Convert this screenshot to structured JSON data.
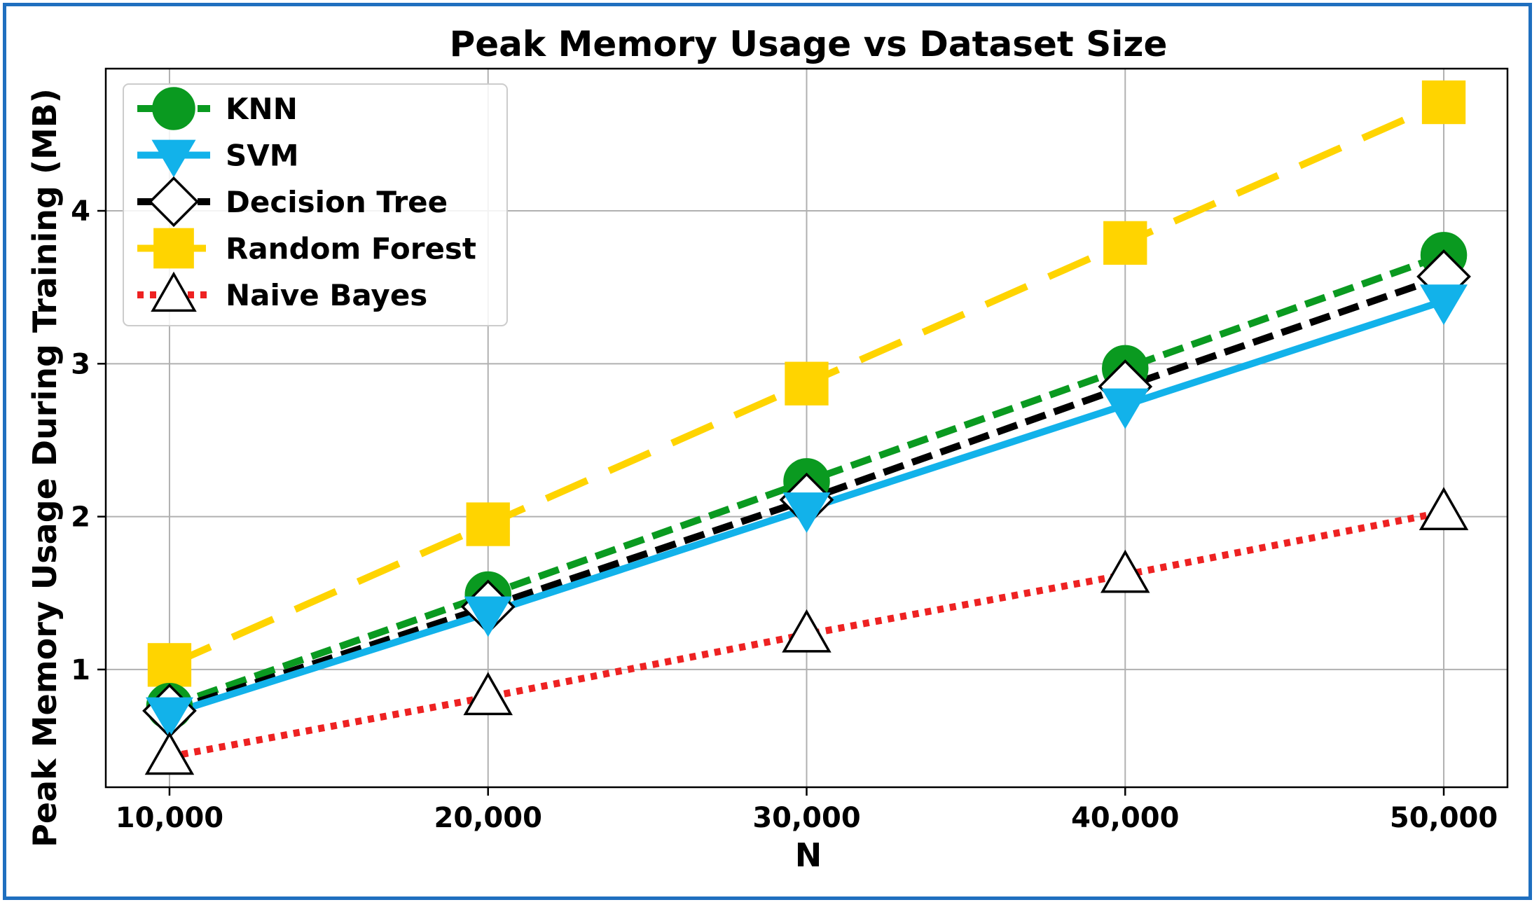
{
  "chart_data": {
    "type": "line",
    "title": "Peak Memory Usage vs Dataset Size",
    "xlabel": "N",
    "ylabel": "Peak Memory Usage During Training (MB)",
    "x": [
      10000,
      20000,
      30000,
      40000,
      50000
    ],
    "x_tick_labels": [
      "10,000",
      "20,000",
      "30,000",
      "40,000",
      "50,000"
    ],
    "y_ticks": [
      1,
      2,
      3,
      4
    ],
    "y_tick_labels": [
      "1",
      "2",
      "3",
      "4"
    ],
    "xlim": [
      8000,
      52000
    ],
    "ylim": [
      0.23,
      4.93
    ],
    "grid": true,
    "legend_position": "upper-left",
    "series": [
      {
        "name": "KNN",
        "values": [
          0.76,
          1.49,
          2.23,
          2.97,
          3.71
        ],
        "color": "#0a9a20",
        "line_style": "dashed",
        "marker": "circle"
      },
      {
        "name": "SVM",
        "values": [
          0.71,
          1.37,
          2.05,
          2.73,
          3.41
        ],
        "color": "#12b2ea",
        "line_style": "solid",
        "marker": "triangle-down"
      },
      {
        "name": "Decision Tree",
        "values": [
          0.73,
          1.41,
          2.11,
          2.85,
          3.57
        ],
        "color": "#000000",
        "line_style": "dashed",
        "marker": "diamond"
      },
      {
        "name": "Random Forest",
        "values": [
          1.03,
          1.95,
          2.87,
          3.79,
          4.71
        ],
        "color": "#ffd400",
        "line_style": "long-dash",
        "marker": "square"
      },
      {
        "name": "Naive Bayes",
        "values": [
          0.43,
          0.82,
          1.23,
          1.62,
          2.03
        ],
        "color": "#ee2222",
        "line_style": "dotted",
        "marker": "triangle-up"
      }
    ]
  }
}
